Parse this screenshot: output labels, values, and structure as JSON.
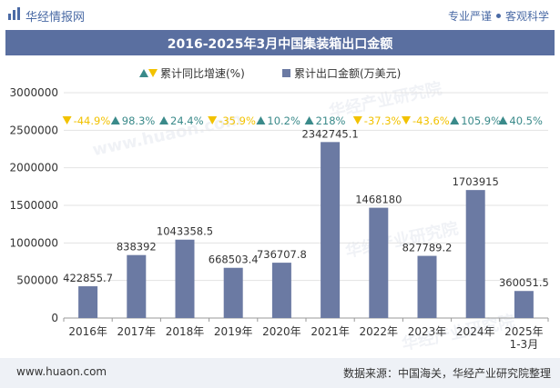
{
  "header": {
    "brand": "华经情报网",
    "tagline_1": "专业严谨",
    "tagline_2": "客观科学"
  },
  "title": "2016-2025年3月中国集装箱出口金额",
  "legend": {
    "growth_label": "累计同比增速(%)",
    "amount_label": "累计出口金额(万美元)"
  },
  "footer": {
    "website": "www.huaon.com",
    "source": "数据来源：中国海关，华经产业研究院整理"
  },
  "colors": {
    "bar": "#6b7aa3",
    "up": "#3a8a8a",
    "down": "#f2c200",
    "title_bg": "#5a6fa0"
  },
  "chart_data": {
    "type": "bar",
    "title": "2016-2025年3月中国集装箱出口金额",
    "categories": [
      "2016年",
      "2017年",
      "2018年",
      "2019年",
      "2020年",
      "2021年",
      "2022年",
      "2023年",
      "2024年",
      "2025年 1-3月"
    ],
    "category_lines": [
      [
        "2016年"
      ],
      [
        "2017年"
      ],
      [
        "2018年"
      ],
      [
        "2019年"
      ],
      [
        "2020年"
      ],
      [
        "2021年"
      ],
      [
        "2022年"
      ],
      [
        "2023年"
      ],
      [
        "2024年"
      ],
      [
        "2025年",
        "1-3月"
      ]
    ],
    "series": [
      {
        "name": "累计出口金额(万美元)",
        "values": [
          422855.7,
          838392,
          1043358.5,
          668503.4,
          736707.8,
          2342745.1,
          1468180,
          827789.2,
          1703915,
          360051.5
        ],
        "labels": [
          "422855.7",
          "838392",
          "1043358.5",
          "668503.4",
          "736707.8",
          "2342745.1",
          "1468180",
          "827789.2",
          "1703915",
          "360051.5"
        ]
      },
      {
        "name": "累计同比增速(%)",
        "values": [
          -44.9,
          98.3,
          24.4,
          -35.9,
          10.2,
          218,
          -37.3,
          -43.6,
          105.9,
          40.5
        ],
        "labels": [
          "-44.9%",
          "98.3%",
          "24.4%",
          "-35.9%",
          "10.2%",
          "218%",
          "-37.3%",
          "-43.6%",
          "105.9%",
          "40.5%"
        ]
      }
    ],
    "yticks": [
      "0",
      "500000",
      "1000000",
      "1500000",
      "2000000",
      "2500000",
      "3000000"
    ],
    "ylim": [
      0,
      3000000
    ],
    "xlabel": "",
    "ylabel": ""
  },
  "watermarks": [
    "华经产业研究院",
    "www.huaon.com"
  ]
}
